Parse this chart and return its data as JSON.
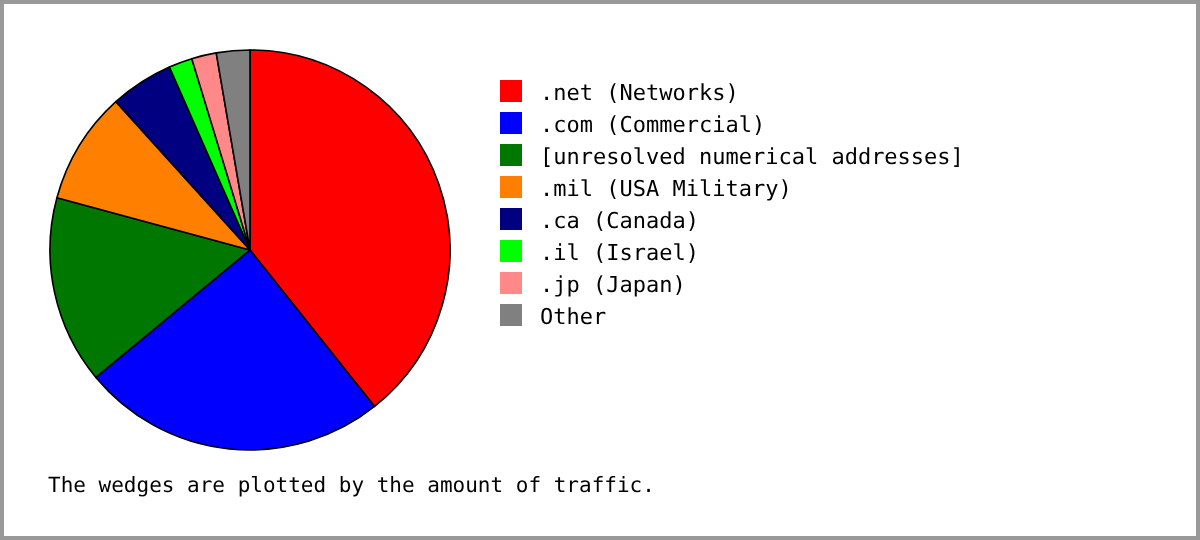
{
  "chart_data": {
    "type": "pie",
    "categories": [
      ".net (Networks)",
      ".com (Commercial)",
      "[unresolved numerical addresses]",
      ".mil (USA Military)",
      ".ca (Canada)",
      ".il (Israel)",
      ".jp (Japan)",
      "Other"
    ],
    "values": [
      39.3,
      24.7,
      15.2,
      9.1,
      5.1,
      1.9,
      2.0,
      2.7
    ],
    "colors": [
      "#ff0000",
      "#0000ff",
      "#007700",
      "#ff8000",
      "#000080",
      "#00ff00",
      "#ff8888",
      "#808080"
    ],
    "legend": "right",
    "annotations": [
      "The wedges are plotted by the amount of traffic."
    ]
  }
}
